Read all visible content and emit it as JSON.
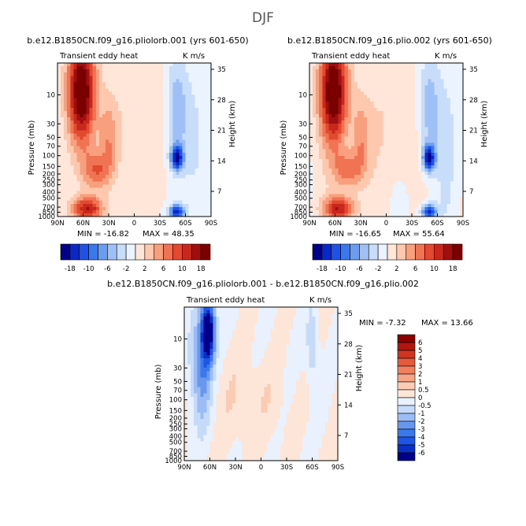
{
  "title": "DJF",
  "colors": {
    "diverging_12": [
      "#00008b",
      "#0828c8",
      "#1e52e6",
      "#3a78f0",
      "#6a9cf2",
      "#9ec0f6",
      "#c8ddfa",
      "#eaf3fe",
      "#ffe6d8",
      "#fdc8ad",
      "#f8a07e",
      "#f07454",
      "#e24a30",
      "#c8281c",
      "#a00f0f",
      "#7a0000"
    ],
    "diff_scale": [
      "#00008b",
      "#0a2fc4",
      "#1f55e6",
      "#3a78ee",
      "#6897f0",
      "#9bbcf5",
      "#c6dbf9",
      "#e8f1fd",
      "#fde5d8",
      "#fbcbb3",
      "#f7a685",
      "#f0805e",
      "#e55a3a",
      "#cf3621",
      "#b0160e",
      "#8b0000"
    ]
  },
  "panels": [
    {
      "case": "b.e12.B1850CN.f09_g16.pliolorb.001 (yrs 601-650)",
      "variable": "Transient eddy heat",
      "units": "K m/s",
      "min_label": "MIN = -16.82",
      "max_label": "MAX = 48.35",
      "ylabel": "Pressure (mb)",
      "y2label": "Height (km)"
    },
    {
      "case": "b.e12.B1850CN.f09_g16.plio.002 (yrs 601-650)",
      "variable": "Transient eddy heat",
      "units": "K m/s",
      "min_label": "MIN = -16.65",
      "max_label": "MAX = 55.64",
      "ylabel": "Pressure (mb)",
      "y2label": "Height (km)"
    },
    {
      "case": "b.e12.B1850CN.f09_g16.pliolorb.001 - b.e12.B1850CN.f09_g16.plio.002",
      "variable": "Transient eddy heat",
      "units": "K m/s",
      "min_label": "MIN = -7.32",
      "max_label": "MAX = 13.66",
      "ylabel": "Pressure (mb)",
      "y2label": "Height (km)"
    }
  ],
  "chart_data": [
    {
      "type": "heatmap",
      "title": "b.e12.B1850CN.f09_g16.pliolorb.001 (yrs 601-650)",
      "xlabel": "",
      "ylabel": "Pressure (mb)",
      "y2label": "Height (km)",
      "x_ticks": [
        "90N",
        "60N",
        "30N",
        "0",
        "30S",
        "60S",
        "90S"
      ],
      "x_range": [
        90,
        -90
      ],
      "y_ticks": [
        "10",
        "30",
        "50",
        "70",
        "100",
        "150",
        "200",
        "250",
        "300",
        "400",
        "500",
        "700",
        "850",
        "1000"
      ],
      "y_range_mb": [
        1000,
        3
      ],
      "y2_ticks": [
        "35",
        "28",
        "21",
        "14",
        "7"
      ],
      "min": -16.82,
      "max": 48.35,
      "colorbar_labels": [
        "-18",
        "-10",
        "-6",
        "-2",
        "2",
        "6",
        "10",
        "18"
      ]
    },
    {
      "type": "heatmap",
      "title": "b.e12.B1850CN.f09_g16.plio.002 (yrs 601-650)",
      "ylabel": "Pressure (mb)",
      "y2label": "Height (km)",
      "x_ticks": [
        "90N",
        "60N",
        "30N",
        "0",
        "30S",
        "60S",
        "90S"
      ],
      "x_range": [
        90,
        -90
      ],
      "y_ticks": [
        "10",
        "30",
        "50",
        "70",
        "100",
        "150",
        "200",
        "250",
        "300",
        "400",
        "500",
        "700",
        "850",
        "1000"
      ],
      "y_range_mb": [
        1000,
        3
      ],
      "y2_ticks": [
        "35",
        "28",
        "21",
        "14",
        "7"
      ],
      "min": -16.65,
      "max": 55.64,
      "colorbar_labels": [
        "-18",
        "-10",
        "-6",
        "-2",
        "2",
        "6",
        "10",
        "18"
      ]
    },
    {
      "type": "heatmap",
      "title": "b.e12.B1850CN.f09_g16.pliolorb.001 - b.e12.B1850CN.f09_g16.plio.002",
      "ylabel": "Pressure (mb)",
      "y2label": "Height (km)",
      "x_ticks": [
        "90N",
        "60N",
        "30N",
        "0",
        "30S",
        "60S",
        "90S"
      ],
      "x_range": [
        90,
        -90
      ],
      "y_ticks": [
        "10",
        "30",
        "50",
        "70",
        "100",
        "150",
        "200",
        "250",
        "300",
        "400",
        "500",
        "700",
        "850",
        "1000"
      ],
      "y_range_mb": [
        1000,
        3
      ],
      "y2_ticks": [
        "35",
        "28",
        "21",
        "14",
        "7"
      ],
      "min": -7.32,
      "max": 13.66,
      "colorbar_labels": [
        "6",
        "5",
        "4",
        "3",
        "2",
        "1",
        "0.5",
        "0",
        "-0.5",
        "-1",
        "-2",
        "-3",
        "-4",
        "-5",
        "-6"
      ]
    }
  ]
}
